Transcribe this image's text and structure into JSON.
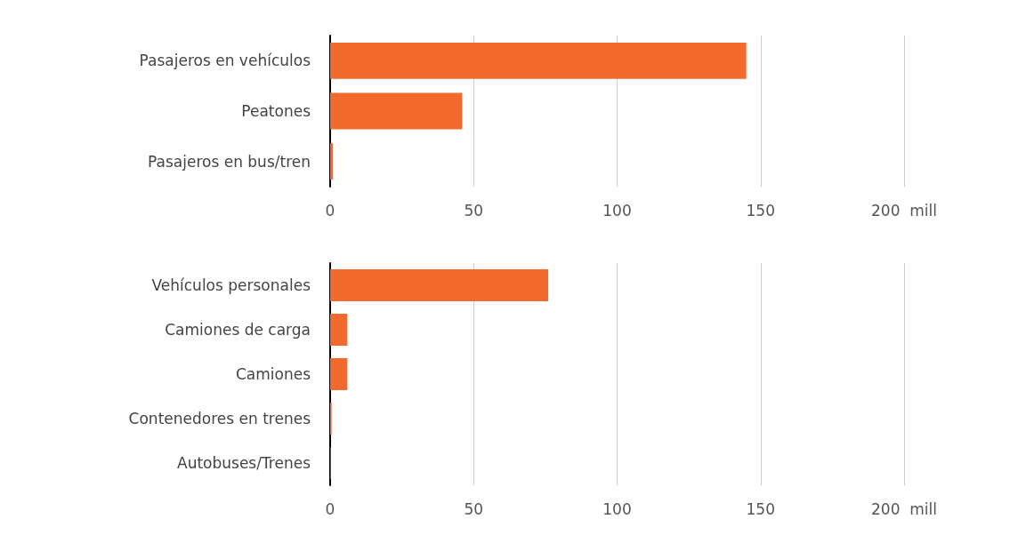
{
  "chart_data": [
    {
      "type": "bar",
      "orientation": "horizontal",
      "categories": [
        "Pasajeros en vehículos",
        "Peatones",
        "Pasajeros en bus/tren"
      ],
      "values": [
        145,
        46,
        1
      ],
      "color": "#f26a2e",
      "xlim": [
        0,
        200
      ],
      "xticks": [
        0,
        50,
        100,
        150,
        {
          "value": 200,
          "label": "200  mill"
        }
      ],
      "grid": "x"
    },
    {
      "type": "bar",
      "orientation": "horizontal",
      "categories": [
        "Vehículos personales",
        "Camiones de carga",
        "Camiones",
        "Contenedores en trenes",
        "Autobuses/Trenes"
      ],
      "values": [
        76,
        6,
        6,
        0.5,
        0.2
      ],
      "color": "#f26a2e",
      "xlim": [
        0,
        200
      ],
      "xticks": [
        0,
        50,
        100,
        150,
        {
          "value": 200,
          "label": "200  mill"
        }
      ],
      "grid": "x"
    }
  ]
}
